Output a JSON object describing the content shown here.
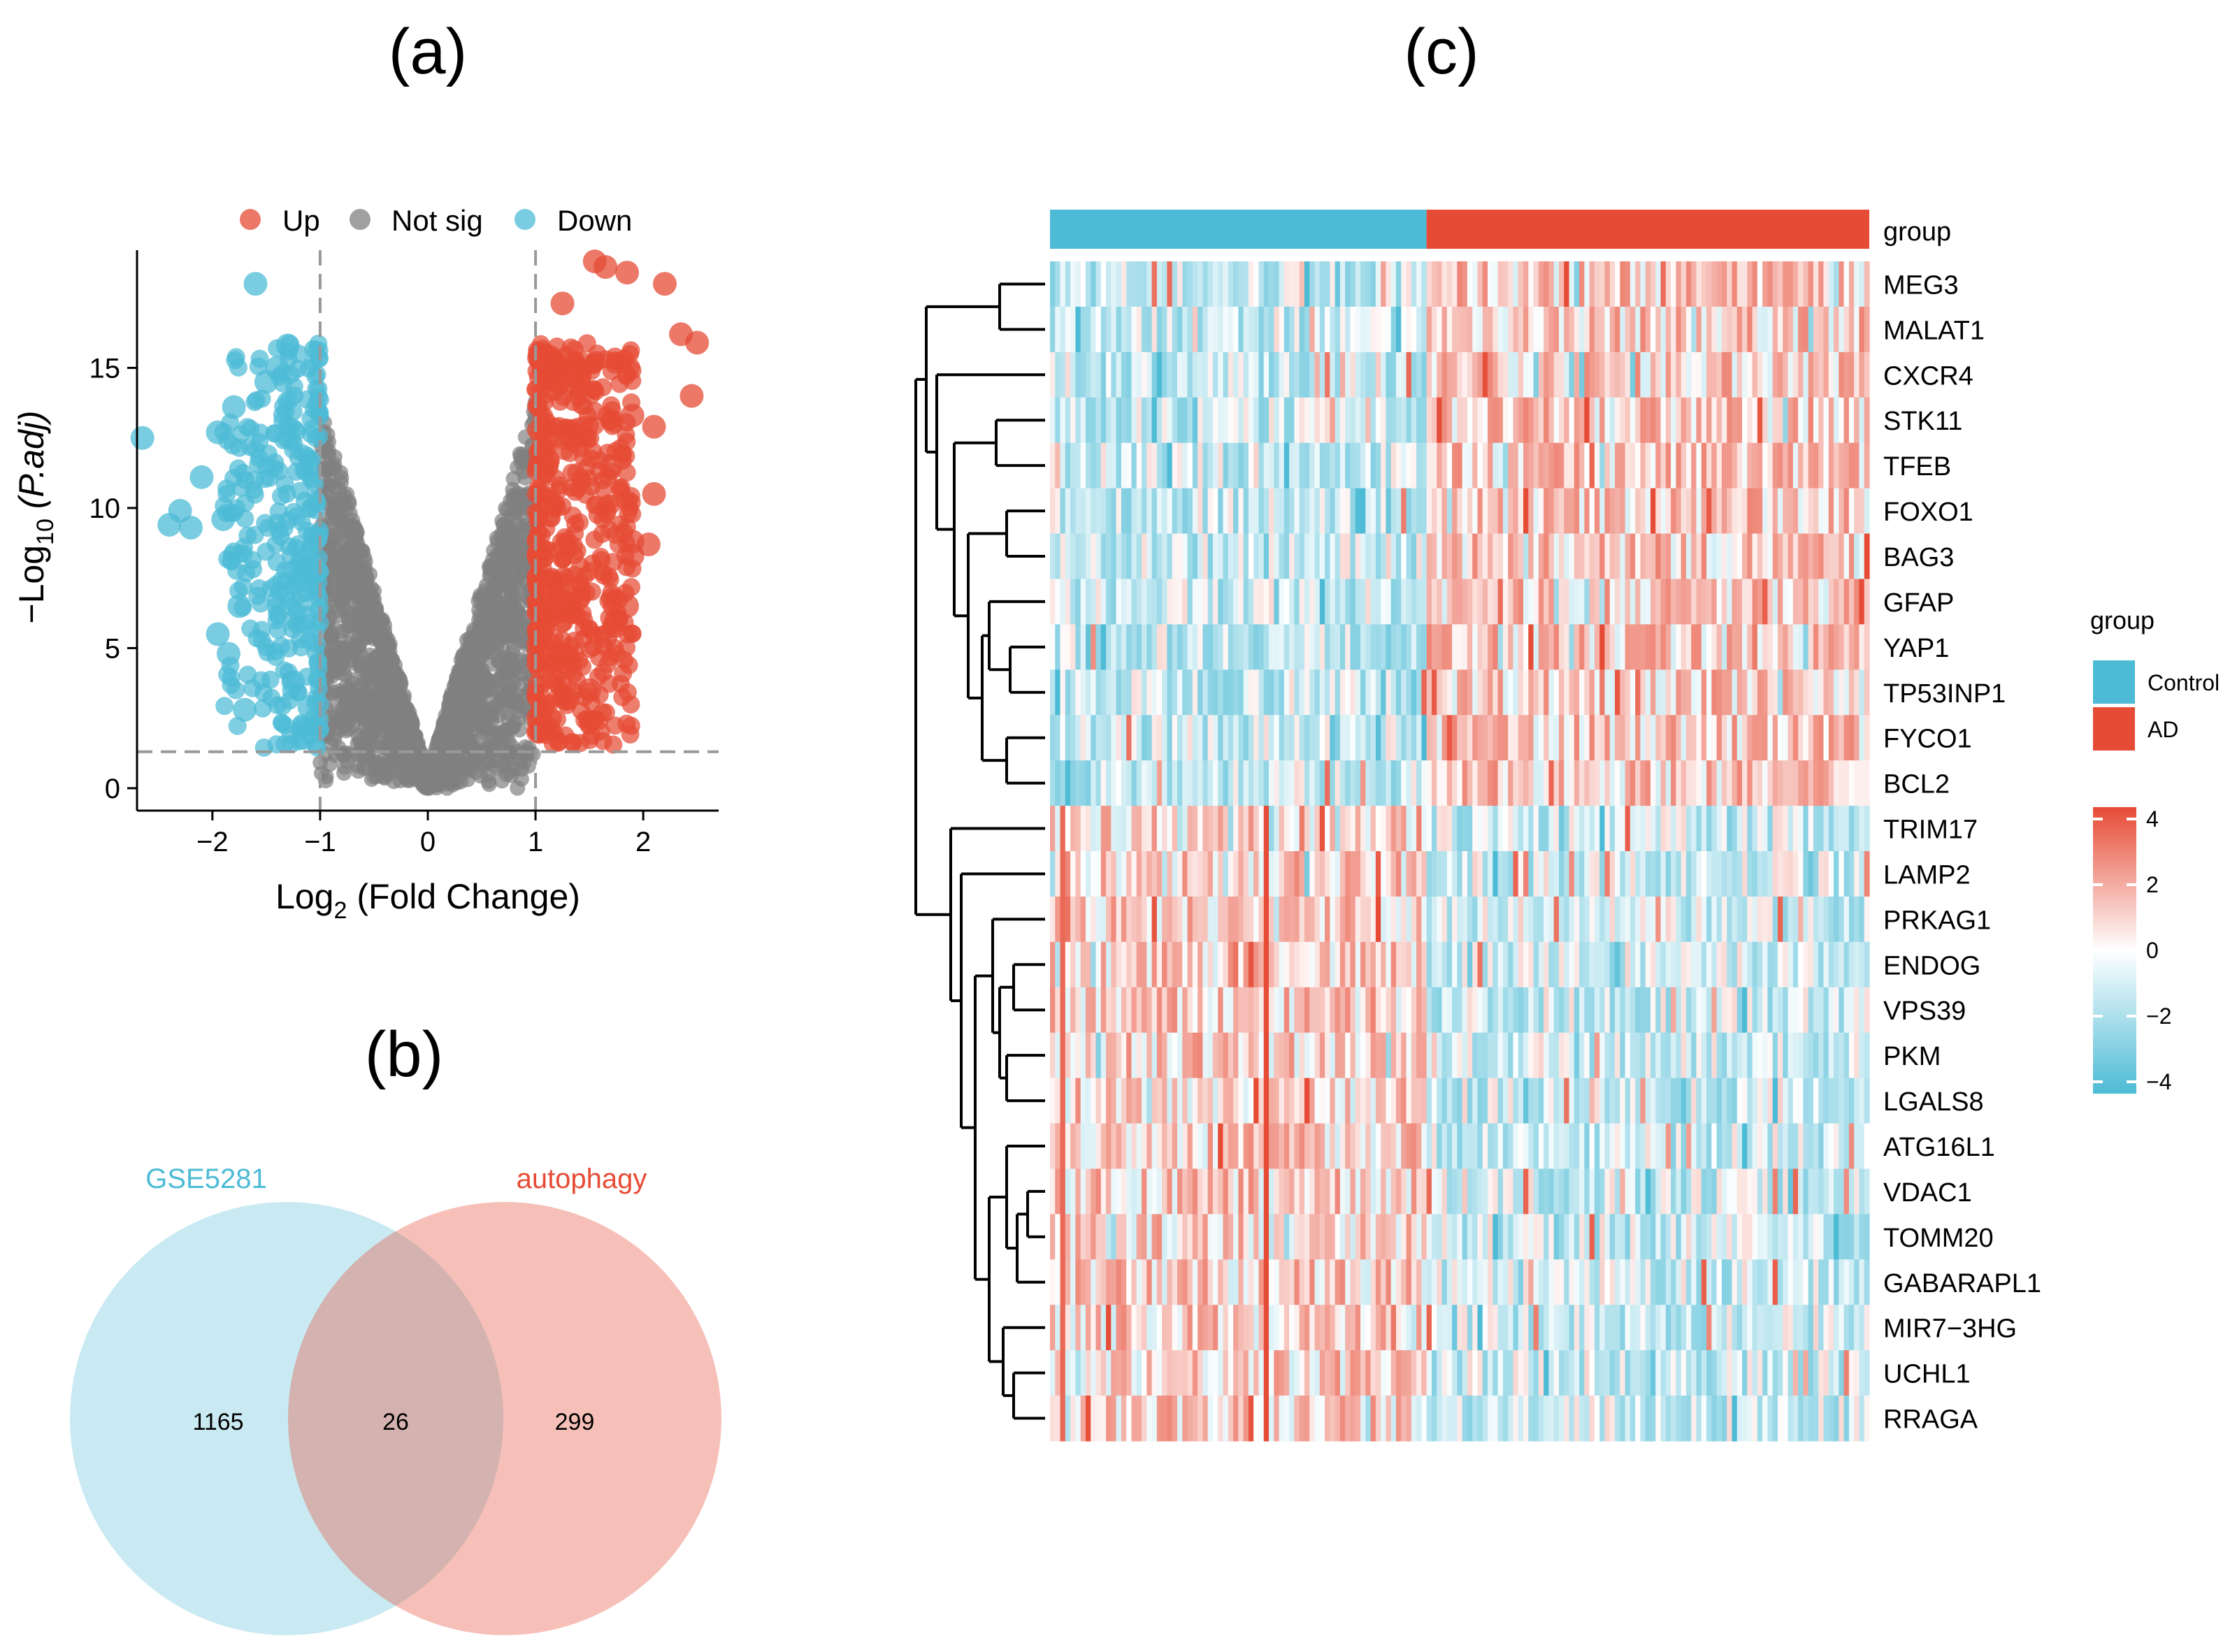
{
  "panels": {
    "a": "(a)",
    "b": "(b)",
    "c": "(c)"
  },
  "chart_data": [
    {
      "type": "scatter",
      "subtype": "volcano",
      "title": "",
      "xlabel_main": "Log",
      "xlabel_sub": "2",
      "xlabel_rest": " (Fold Change)",
      "ylabel_prefix": "−Log",
      "ylabel_sub": "10",
      "ylabel_paren": "(P.adj)",
      "xlim": [
        -2.7,
        2.7
      ],
      "ylim": [
        -0.8,
        19.2
      ],
      "x_ticks": [
        -2,
        -1,
        0,
        1,
        2
      ],
      "x_tick_labels": [
        "−2",
        "−1",
        "0",
        "1",
        "2"
      ],
      "y_ticks": [
        0,
        5,
        10,
        15
      ],
      "y_tick_labels": [
        "0",
        "5",
        "10",
        "15"
      ],
      "thresholds": {
        "log2fc": [
          -1,
          1
        ],
        "neg_log10_padj": 1.3
      },
      "legend": [
        {
          "label": "Up",
          "color": "#e64b35"
        },
        {
          "label": "Not sig",
          "color": "#808080"
        },
        {
          "label": "Down",
          "color": "#4dbbd5"
        }
      ],
      "highlight_points": {
        "up": [
          [
            1.55,
            18.8
          ],
          [
            1.65,
            18.6
          ],
          [
            1.85,
            18.4
          ],
          [
            2.2,
            18.0
          ],
          [
            2.5,
            15.9
          ],
          [
            2.45,
            14.0
          ],
          [
            2.35,
            16.2
          ],
          [
            1.9,
            13.3
          ],
          [
            2.1,
            12.9
          ],
          [
            1.7,
            11.5
          ],
          [
            2.1,
            10.5
          ],
          [
            1.9,
            8.8
          ],
          [
            2.05,
            8.7
          ],
          [
            1.9,
            8.3
          ],
          [
            1.85,
            6.5
          ],
          [
            1.75,
            6.0
          ],
          [
            1.65,
            5.4
          ],
          [
            1.5,
            3.5
          ],
          [
            1.3,
            3.2
          ],
          [
            1.1,
            2.0
          ],
          [
            1.4,
            12.8
          ],
          [
            1.05,
            15.3
          ],
          [
            1.25,
            17.3
          ]
        ],
        "down": [
          [
            -1.6,
            18.0
          ],
          [
            -2.65,
            12.5
          ],
          [
            -1.3,
            15.8
          ],
          [
            -1.4,
            15.0
          ],
          [
            -1.5,
            14.5
          ],
          [
            -1.8,
            13.6
          ],
          [
            -1.95,
            12.7
          ],
          [
            -2.1,
            11.1
          ],
          [
            -2.3,
            9.9
          ],
          [
            -2.2,
            9.3
          ],
          [
            -2.4,
            9.4
          ],
          [
            -1.9,
            9.6
          ],
          [
            -1.75,
            6.5
          ],
          [
            -1.95,
            5.5
          ],
          [
            -1.85,
            4.8
          ],
          [
            -1.7,
            2.8
          ],
          [
            -1.15,
            1.8
          ],
          [
            -1.1,
            2.9
          ],
          [
            -1.25,
            3.8
          ]
        ]
      }
    },
    {
      "type": "venn",
      "sets": [
        {
          "name": "GSE5281",
          "color": "#4dbbd5",
          "only": 1165
        },
        {
          "name": "autophagy",
          "color": "#e64b35",
          "only": 299
        }
      ],
      "intersection": 26,
      "labels": [
        "1165",
        "26",
        "299"
      ]
    },
    {
      "type": "heatmap",
      "title": "",
      "rows": [
        "MEG3",
        "MALAT1",
        "CXCR4",
        "STK11",
        "TFEB",
        "FOXO1",
        "BAG3",
        "GFAP",
        "YAP1",
        "TP53INP1",
        "FYCO1",
        "BCL2",
        "TRIM17",
        "LAMP2",
        "PRKAG1",
        "ENDOG",
        "VPS39",
        "PKM",
        "LGALS8",
        "ATG16L1",
        "VDAC1",
        "TOMM20",
        "GABARAPL1",
        "MIR7−3HG",
        "UCHL1",
        "RRAGA"
      ],
      "annotation_label": "group",
      "groups": [
        {
          "name": "Control",
          "color": "#4dbbd5",
          "n": 74
        },
        {
          "name": "AD",
          "color": "#e64b35",
          "n": 87
        }
      ],
      "legend_title": "group",
      "scale": {
        "min": -4,
        "max": 4,
        "low_color": "#4dbbd5",
        "mid_color": "#ffffff",
        "high_color": "#e64b35"
      },
      "scale_ticks": [
        4,
        2,
        0,
        -2,
        -4
      ],
      "scale_tick_labels": [
        "4",
        "2",
        "0",
        "−2",
        "−4"
      ],
      "row_clusters": [
        {
          "rows": [
            "MEG3",
            "MALAT1",
            "CXCR4",
            "STK11",
            "TFEB",
            "FOXO1",
            "BAG3",
            "GFAP",
            "YAP1",
            "TP53INP1",
            "FYCO1",
            "BCL2"
          ],
          "pattern": "higher in AD"
        },
        {
          "rows": [
            "TRIM17",
            "LAMP2",
            "PRKAG1",
            "ENDOG",
            "VPS39",
            "PKM",
            "LGALS8",
            "ATG16L1",
            "VDAC1",
            "TOMM20",
            "GABARAPL1",
            "MIR7−3HG",
            "UCHL1",
            "RRAGA"
          ],
          "pattern": "higher in Control"
        }
      ]
    }
  ]
}
